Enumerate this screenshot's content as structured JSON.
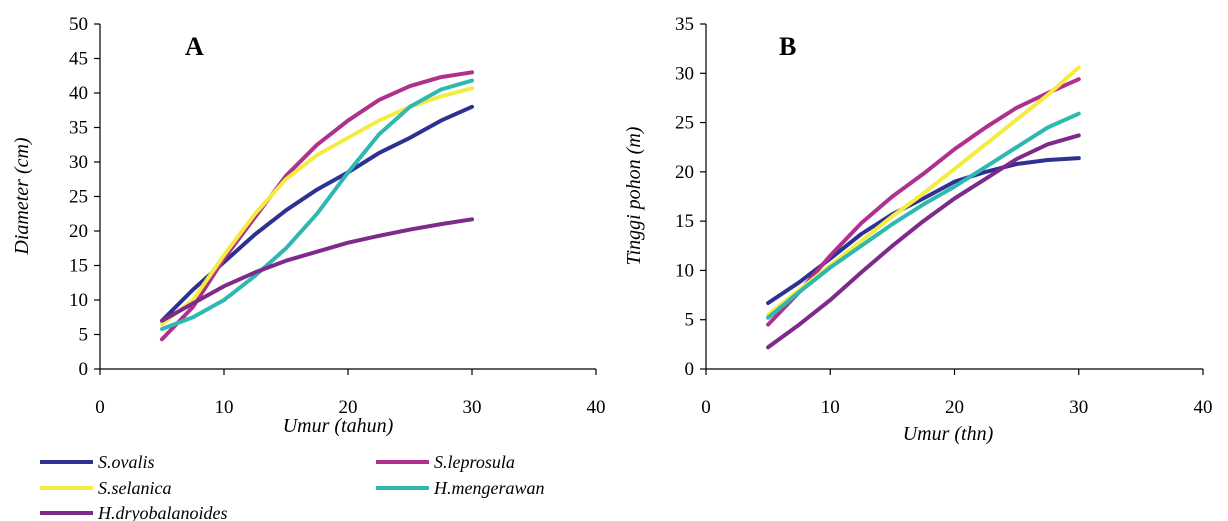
{
  "chart_data": [
    {
      "type": "line",
      "panel_label": "A",
      "xlabel": "Umur (tahun)",
      "ylabel": "Diameter (cm)",
      "xlim": [
        0,
        40
      ],
      "ylim": [
        0,
        50
      ],
      "x_ticks": [
        "0",
        "10",
        "20",
        "30",
        "40"
      ],
      "y_ticks": [
        "0",
        "5",
        "10",
        "15",
        "20",
        "25",
        "30",
        "35",
        "40",
        "45",
        "50"
      ],
      "grid": false,
      "series": [
        {
          "name": "S.ovalis",
          "color": "#2E3192",
          "x": [
            5,
            7.5,
            10,
            12.5,
            15,
            17.5,
            20,
            22.5,
            25,
            27.5,
            30
          ],
          "y": [
            7,
            11.5,
            15.5,
            19.5,
            23,
            26,
            28.5,
            31.3,
            33.5,
            36,
            38
          ]
        },
        {
          "name": "S.leprosula",
          "color": "#B0308E",
          "x": [
            5,
            7.5,
            10,
            12.5,
            15,
            17.5,
            20,
            22.5,
            25,
            27.5,
            30
          ],
          "y": [
            4.3,
            9,
            16,
            22,
            28,
            32.5,
            36,
            39,
            41,
            42.3,
            43
          ]
        },
        {
          "name": "S.selanica",
          "color": "#F5EC42",
          "x": [
            5,
            7.5,
            10,
            12.5,
            15,
            17.5,
            20,
            22.5,
            25,
            27.5,
            30
          ],
          "y": [
            6.5,
            10,
            16.5,
            22.5,
            27.5,
            31,
            33.5,
            36,
            38,
            39.5,
            40.7
          ]
        },
        {
          "name": "H.mengerawan",
          "color": "#2FB8B0",
          "x": [
            5,
            7.5,
            10,
            12.5,
            15,
            17.5,
            20,
            22.5,
            25,
            27.5,
            30
          ],
          "y": [
            5.8,
            7.5,
            10,
            13.5,
            17.5,
            22.5,
            28.5,
            34,
            38,
            40.5,
            41.8
          ]
        },
        {
          "name": "H.dryobalanoides",
          "color": "#7D2A8A",
          "x": [
            5,
            7.5,
            10,
            12.5,
            15,
            17.5,
            20,
            22.5,
            25,
            27.5,
            30
          ],
          "y": [
            7,
            9.5,
            12,
            14,
            15.7,
            17,
            18.3,
            19.3,
            20.2,
            21,
            21.7
          ]
        }
      ]
    },
    {
      "type": "line",
      "panel_label": "B",
      "xlabel": "Umur (thn)",
      "ylabel": "Tinggi pohon (m)",
      "xlim": [
        0,
        40
      ],
      "ylim": [
        0,
        35
      ],
      "x_ticks": [
        "0",
        "10",
        "20",
        "30",
        "40"
      ],
      "y_ticks": [
        "0",
        "5",
        "10",
        "15",
        "20",
        "25",
        "30",
        "35"
      ],
      "grid": false,
      "series": [
        {
          "name": "S.ovalis",
          "color": "#2E3192",
          "x": [
            5,
            7.5,
            10,
            12.5,
            15,
            17.5,
            20,
            22.5,
            25,
            27.5,
            30
          ],
          "y": [
            6.7,
            8.8,
            11.2,
            13.7,
            15.7,
            17.3,
            19,
            20,
            20.8,
            21.2,
            21.4
          ]
        },
        {
          "name": "S.leprosula",
          "color": "#B0308E",
          "x": [
            5,
            7.5,
            10,
            12.5,
            15,
            17.5,
            20,
            22.5,
            25,
            27.5,
            30
          ],
          "y": [
            4.5,
            7.8,
            11.5,
            14.8,
            17.5,
            19.8,
            22.3,
            24.5,
            26.5,
            28,
            29.4
          ]
        },
        {
          "name": "S.selanica",
          "color": "#F5EC42",
          "x": [
            5,
            7.5,
            10,
            12.5,
            15,
            17.5,
            20,
            22.5,
            25,
            27.5,
            30
          ],
          "y": [
            5.5,
            8,
            10.5,
            13,
            15.5,
            17.8,
            20.3,
            22.8,
            25.3,
            27.8,
            30.6
          ]
        },
        {
          "name": "H.mengerawan",
          "color": "#2FB8B0",
          "x": [
            5,
            7.5,
            10,
            12.5,
            15,
            17.5,
            20,
            22.5,
            25,
            27.5,
            30
          ],
          "y": [
            5.2,
            7.8,
            10.3,
            12.5,
            14.7,
            16.7,
            18.5,
            20.5,
            22.5,
            24.5,
            25.9
          ]
        },
        {
          "name": "H.dryobalanoides",
          "color": "#7D2A8A",
          "x": [
            5,
            7.5,
            10,
            12.5,
            15,
            17.5,
            20,
            22.5,
            25,
            27.5,
            30
          ],
          "y": [
            2.2,
            4.5,
            7,
            9.8,
            12.5,
            15,
            17.3,
            19.3,
            21.3,
            22.8,
            23.7
          ]
        }
      ]
    }
  ],
  "legend": {
    "placement": "bottom-left",
    "entries": [
      {
        "name": "S.ovalis",
        "color": "#2E3192"
      },
      {
        "name": "S.leprosula",
        "color": "#B0308E"
      },
      {
        "name": "S.selanica",
        "color": "#F5EC42"
      },
      {
        "name": "H.mengerawan",
        "color": "#2FB8B0"
      },
      {
        "name": "H.dryobalanoides",
        "color": "#7D2A8A"
      }
    ]
  }
}
